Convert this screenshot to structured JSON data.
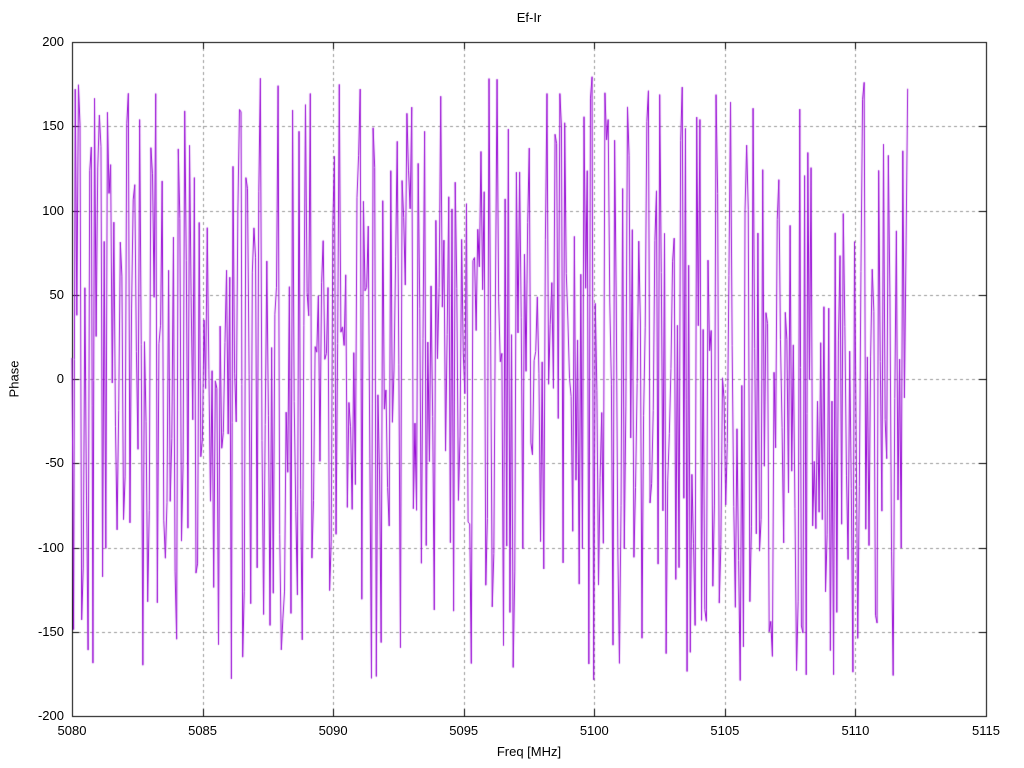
{
  "chart_data": {
    "type": "line",
    "title": "Ef-Ir",
    "xlabel": "Freq [MHz]",
    "ylabel": "Phase",
    "xlim": [
      5080,
      5115
    ],
    "ylim": [
      -200,
      200
    ],
    "x_ticks": [
      5080,
      5085,
      5090,
      5095,
      5100,
      5105,
      5110,
      5115
    ],
    "y_ticks": [
      200,
      150,
      100,
      50,
      0,
      -50,
      -100,
      -150,
      -200
    ],
    "grid": true,
    "legend": false,
    "x_data_range": [
      5080,
      5112
    ],
    "n_points": 520,
    "series": [
      {
        "name": "Ef-Ir",
        "model": "wrapped-phase-noise",
        "value_range": [
          -180,
          180
        ],
        "seed": 20240613
      }
    ],
    "note": "Dense rapidly-wrapping phase trace spanning roughly -180 to +180 degrees across 5080-5112 MHz; no data between 5112 and 5115 MHz.",
    "colors": {
      "line": "#9400d3",
      "grid": "#9a9a9a",
      "axis": "#000000",
      "background": "#ffffff"
    }
  }
}
